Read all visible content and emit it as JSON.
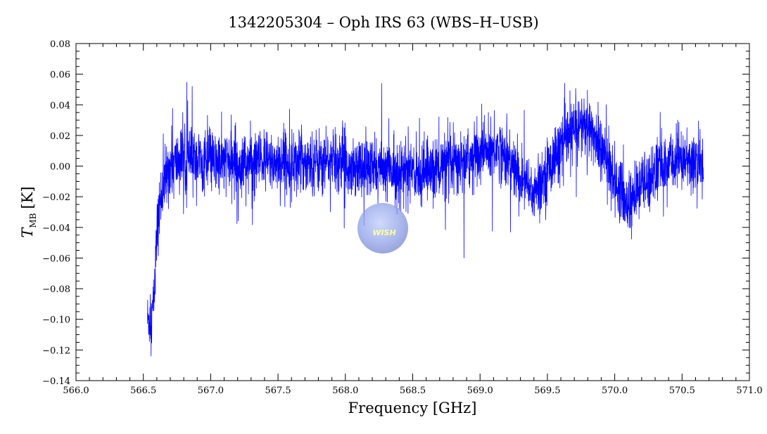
{
  "chart_data": {
    "type": "line",
    "title": "1342205304 – Oph IRS 63 (WBS–H–USB)",
    "xlabel": "Frequency [GHz]",
    "ylabel_main": "T",
    "ylabel_sub": "MB",
    "ylabel_unit": "[K]",
    "xlim": [
      566.0,
      571.0
    ],
    "ylim": [
      -0.14,
      0.08
    ],
    "x_ticks": [
      "566.0",
      "566.5",
      "567.0",
      "567.5",
      "568.0",
      "568.5",
      "569.0",
      "569.5",
      "570.0",
      "570.5",
      "571.0"
    ],
    "y_ticks": [
      "0.08",
      "0.06",
      "0.04",
      "0.02",
      "0.00",
      "−0.02",
      "−0.04",
      "−0.06",
      "−0.08",
      "−0.10",
      "−0.12",
      "−0.14"
    ],
    "grid": false,
    "series": [
      {
        "color": "#0000ff",
        "x_start": 566.53,
        "x_end": 570.66,
        "baseline": [
          [
            566.53,
            -0.1
          ],
          [
            566.56,
            -0.1
          ],
          [
            566.58,
            -0.085
          ],
          [
            566.6,
            -0.045
          ],
          [
            566.63,
            -0.02
          ],
          [
            566.66,
            -0.01
          ],
          [
            566.7,
            0.0
          ],
          [
            566.8,
            0.005
          ],
          [
            567.0,
            0.002
          ],
          [
            567.5,
            0.003
          ],
          [
            568.0,
            0.003
          ],
          [
            568.2,
            -0.002
          ],
          [
            568.5,
            -0.004
          ],
          [
            568.8,
            0.0
          ],
          [
            569.0,
            0.008
          ],
          [
            569.15,
            0.012
          ],
          [
            569.3,
            -0.008
          ],
          [
            569.4,
            -0.018
          ],
          [
            569.55,
            0.005
          ],
          [
            569.65,
            0.018
          ],
          [
            569.75,
            0.028
          ],
          [
            569.85,
            0.02
          ],
          [
            570.0,
            -0.008
          ],
          [
            570.1,
            -0.026
          ],
          [
            570.2,
            -0.012
          ],
          [
            570.35,
            0.0
          ],
          [
            570.5,
            0.005
          ],
          [
            570.66,
            0.0
          ]
        ],
        "noise_rms": 0.012
      }
    ]
  },
  "logo": {
    "text": "WISH"
  }
}
